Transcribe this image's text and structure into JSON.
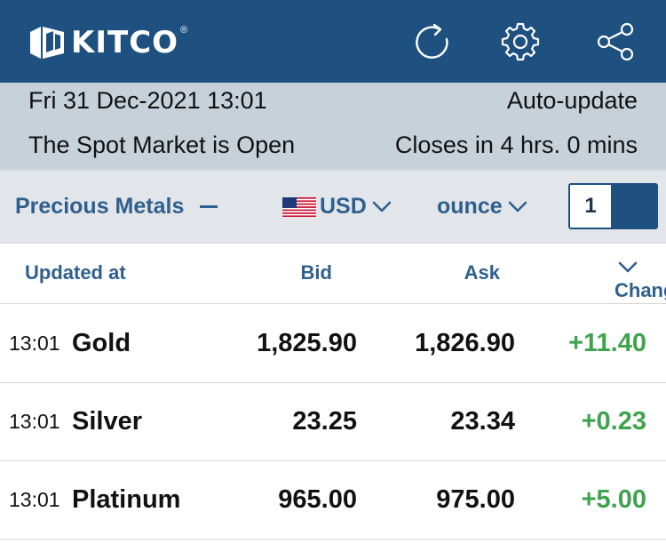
{
  "header": {
    "logo_text": "KITCO",
    "logo_reg": "®",
    "icons": [
      "refresh-icon",
      "gear-icon",
      "share-icon"
    ],
    "bg_color": "#1e5080"
  },
  "info": {
    "datetime": "Fri 31 Dec-2021 13:01",
    "auto_update": "Auto-update",
    "market_status": "The Spot Market is Open",
    "closes_in": "Closes in 4 hrs. 0 mins"
  },
  "filters": {
    "category": "Precious Metals",
    "currency": "USD",
    "unit": "ounce",
    "unit_qty": "1"
  },
  "columns": {
    "updated": "Updated at",
    "bid": "Bid",
    "ask": "Ask",
    "change": "Change"
  },
  "rows": [
    {
      "time": "13:01",
      "name": "Gold",
      "bid": "1,825.90",
      "ask": "1,826.90",
      "change": "+11.40"
    },
    {
      "time": "13:01",
      "name": "Silver",
      "bid": "23.25",
      "ask": "23.34",
      "change": "+0.23"
    },
    {
      "time": "13:01",
      "name": "Platinum",
      "bid": "965.00",
      "ask": "975.00",
      "change": "+5.00"
    }
  ],
  "colors": {
    "positive": "#3fa34d",
    "accent": "#2f5f8d"
  }
}
